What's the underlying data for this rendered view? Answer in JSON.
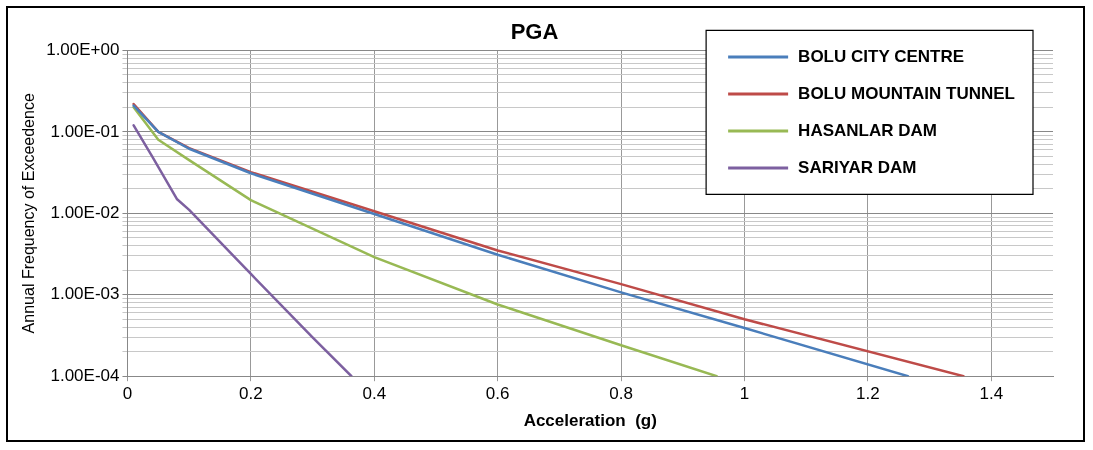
{
  "chart_data": {
    "type": "line",
    "title": "PGA",
    "xlabel": "Acceleration  (g)",
    "ylabel": "Annual Frequency of Exceedence",
    "log": "y",
    "grid": true,
    "legend": "top right",
    "marker": "none",
    "line_style": "solid",
    "xlim": [
      0,
      1.5
    ],
    "xticks": [
      0,
      0.2,
      0.4,
      0.6,
      0.8,
      1,
      1.2,
      1.4
    ],
    "ylim": [
      0.0001,
      1
    ],
    "yticks": [
      {
        "value": 0.0001,
        "label": "1.00E-04"
      },
      {
        "value": 0.0002,
        "label": null
      },
      {
        "value": 0.0003,
        "label": null
      },
      {
        "value": 0.0004,
        "label": null
      },
      {
        "value": 0.0005,
        "label": null
      },
      {
        "value": 0.0006,
        "label": null
      },
      {
        "value": 0.0007,
        "label": null
      },
      {
        "value": 0.0008,
        "label": null
      },
      {
        "value": 0.0009,
        "label": null
      },
      {
        "value": 0.001,
        "label": "1.00E-03"
      },
      {
        "value": 0.002,
        "label": null
      },
      {
        "value": 0.003,
        "label": null
      },
      {
        "value": 0.004,
        "label": null
      },
      {
        "value": 0.005,
        "label": null
      },
      {
        "value": 0.006,
        "label": null
      },
      {
        "value": 0.007,
        "label": null
      },
      {
        "value": 0.008,
        "label": null
      },
      {
        "value": 0.009,
        "label": null
      },
      {
        "value": 0.01,
        "label": "1.00E-02"
      },
      {
        "value": 0.02,
        "label": null
      },
      {
        "value": 0.03,
        "label": null
      },
      {
        "value": 0.04,
        "label": null
      },
      {
        "value": 0.05,
        "label": null
      },
      {
        "value": 0.06,
        "label": null
      },
      {
        "value": 0.07,
        "label": null
      },
      {
        "value": 0.08,
        "label": null
      },
      {
        "value": 0.09,
        "label": null
      },
      {
        "value": 0.1,
        "label": "1.00E-01"
      },
      {
        "value": 0.2,
        "label": null
      },
      {
        "value": 0.3,
        "label": null
      },
      {
        "value": 0.4,
        "label": null
      },
      {
        "value": 0.5,
        "label": null
      },
      {
        "value": 0.6,
        "label": null
      },
      {
        "value": 0.7,
        "label": null
      },
      {
        "value": 0.8,
        "label": null
      },
      {
        "value": 0.9,
        "label": null
      },
      {
        "value": 1,
        "label": "1.00E+00"
      }
    ],
    "series": [
      {
        "name": "BOLU CITY CENTRE",
        "color": "#4a7ebb",
        "x": [
          0.01,
          0.05,
          0.1,
          0.2,
          0.4,
          0.6,
          0.8,
          1,
          1.265
        ],
        "values": [
          0.21,
          0.1,
          0.062,
          0.031,
          0.0098,
          0.0031,
          0.00107,
          0.00039,
          0.0001
        ]
      },
      {
        "name": "BOLU MOUNTAIN TUNNEL",
        "color": "#be4b48",
        "x": [
          0.01,
          0.05,
          0.1,
          0.2,
          0.4,
          0.6,
          0.8,
          1,
          1.355
        ],
        "values": [
          0.22,
          0.1,
          0.063,
          0.032,
          0.0106,
          0.0035,
          0.00135,
          0.0005,
          0.0001
        ]
      },
      {
        "name": "HASANLAR DAM",
        "color": "#98b954",
        "x": [
          0.01,
          0.05,
          0.1,
          0.2,
          0.4,
          0.6,
          0.8,
          0.955
        ],
        "values": [
          0.2,
          0.08,
          0.045,
          0.0145,
          0.0029,
          0.00076,
          0.00024,
          0.0001
        ]
      },
      {
        "name": "SARIYAR DAM",
        "color": "#7d60a0",
        "x": [
          0.01,
          0.04,
          0.08,
          0.1,
          0.2,
          0.3,
          0.363
        ],
        "values": [
          0.12,
          0.05,
          0.015,
          0.011,
          0.0018,
          0.0003,
          0.0001
        ]
      }
    ]
  }
}
